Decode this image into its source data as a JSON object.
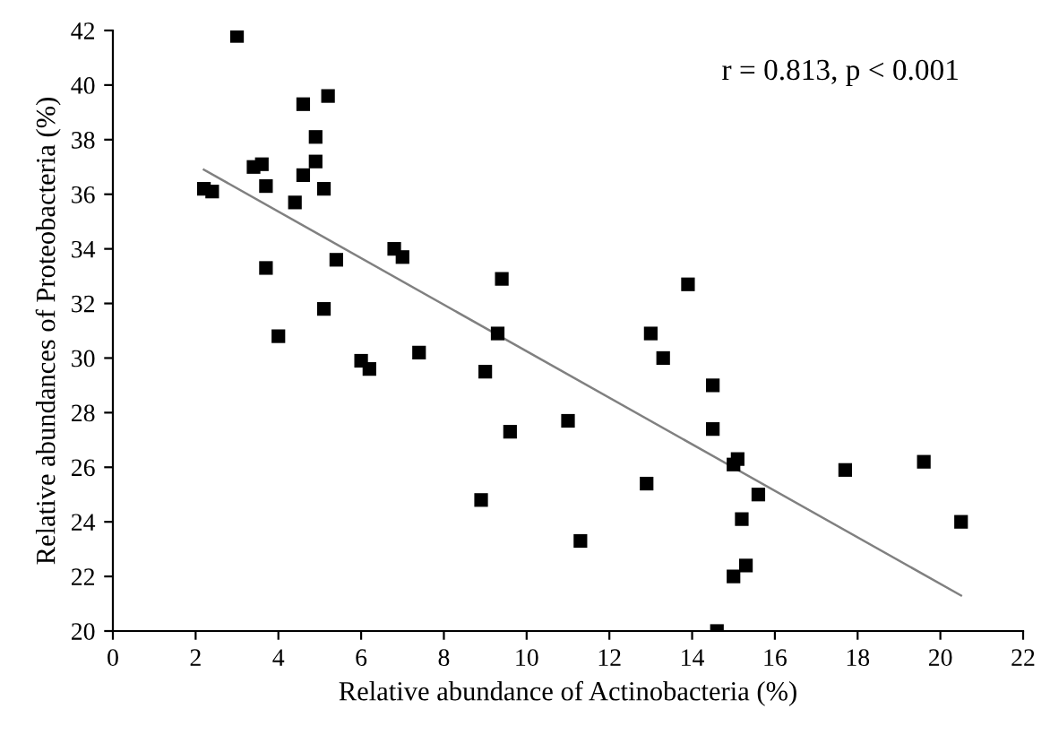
{
  "chart_data": {
    "type": "scatter",
    "xlabel": "Relative abundance of Actinobacteria (%)",
    "ylabel": "Relative abundances of Proteobacteria (%)",
    "annotations": [
      "r = 0.813, p < 0.001"
    ],
    "series": [
      {
        "color": "#000000",
        "marker": "square",
        "x": [
          2.2,
          2.4,
          3.0,
          3.4,
          3.6,
          3.7,
          3.7,
          4.0,
          4.4,
          4.6,
          4.6,
          4.9,
          4.9,
          5.1,
          5.1,
          5.2,
          5.4,
          6.0,
          6.2,
          6.8,
          7.0,
          7.4,
          9.0,
          8.9,
          9.4,
          9.3,
          9.6,
          11.0,
          11.3,
          12.9,
          13.0,
          13.3,
          13.9,
          14.5,
          14.5,
          14.6,
          15.0,
          15.1,
          15.0,
          15.2,
          15.3,
          15.6,
          17.7,
          19.6,
          20.5
        ],
        "values": [
          36.2,
          36.1,
          41.8,
          37.0,
          37.1,
          36.3,
          33.3,
          30.8,
          35.7,
          39.3,
          36.7,
          38.1,
          37.2,
          36.2,
          31.8,
          39.6,
          33.6,
          29.9,
          29.6,
          34.0,
          33.7,
          30.2,
          29.5,
          24.8,
          32.9,
          30.9,
          27.3,
          27.7,
          23.3,
          25.4,
          30.9,
          30.0,
          32.7,
          29.0,
          27.4,
          20.0,
          26.1,
          26.3,
          22.0,
          24.1,
          22.4,
          25.0,
          25.9,
          26.2,
          24.0
        ]
      },
      {
        "type": "line",
        "color": "#808080",
        "marker": "none",
        "x": [
          2.2,
          20.5
        ],
        "values": [
          36.9,
          21.3
        ]
      }
    ],
    "xlim": [
      0,
      22
    ],
    "xticks": [
      0,
      2,
      4,
      6,
      8,
      10,
      12,
      14,
      16,
      18,
      20,
      22
    ],
    "ylim": [
      20,
      42
    ],
    "yticks": [
      20,
      22,
      24,
      26,
      28,
      30,
      32,
      34,
      36,
      38,
      40,
      42
    ],
    "grid": false,
    "legend": false
  }
}
